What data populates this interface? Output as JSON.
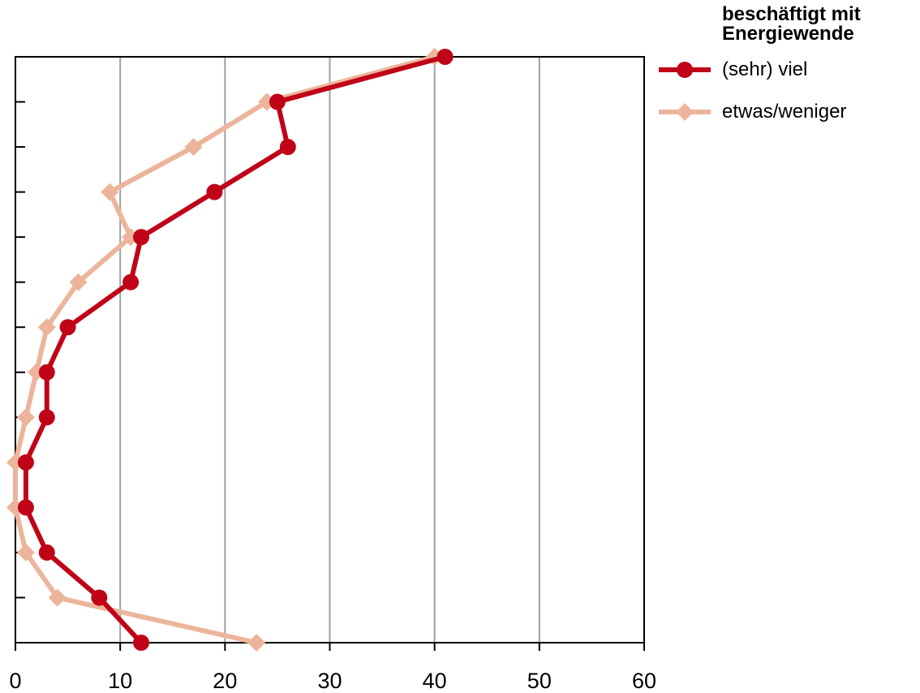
{
  "chart_data": {
    "type": "line",
    "orientation": "horizontal",
    "title": "",
    "xlabel": "",
    "ylabel": "",
    "xlim": [
      0,
      60
    ],
    "x_ticks": [
      "0",
      "10",
      "20",
      "30",
      "40",
      "50",
      "60"
    ],
    "categories_count": 14,
    "grid": "vertical",
    "legend": {
      "title": "beschäftigt mit Energiewende",
      "placement": "right"
    },
    "series": [
      {
        "name": "(sehr) viel",
        "color": "#c00418",
        "marker": "circle",
        "values": [
          41,
          25,
          26,
          19,
          12,
          11,
          5,
          3,
          3,
          1,
          1,
          3,
          8,
          12
        ]
      },
      {
        "name": "etwas/weniger",
        "color": "#ecb59b",
        "marker": "diamond",
        "values": [
          40,
          24,
          17,
          9,
          11,
          6,
          3,
          2,
          1,
          0,
          0,
          1,
          4,
          23
        ]
      }
    ]
  }
}
